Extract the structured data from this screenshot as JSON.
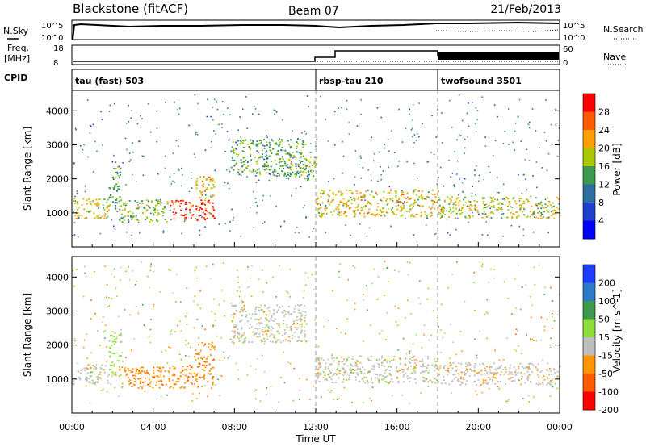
{
  "header": {
    "station": "Blackstone (fitACF)",
    "beam": "Beam 07",
    "date": "21/Feb/2013"
  },
  "top_panels": {
    "nsky_label": "N.Sky",
    "nsky_ticks": [
      "10^5",
      "10^0"
    ],
    "nsky_right_ticks": [
      "10^5",
      "10^0"
    ],
    "nsearch_label": "N.Search",
    "freq_label_1": "Freq.",
    "freq_label_2": "[MHz]",
    "freq_ticks": [
      "18",
      "8"
    ],
    "nave_ticks": [
      "60",
      "0"
    ],
    "nave_label": "Nave",
    "cpid_label": "CPID"
  },
  "cpid_segments": [
    {
      "name": "tau (fast) 503",
      "start_hour": 0
    },
    {
      "name": "rbsp-tau 210",
      "start_hour": 12
    },
    {
      "name": "twofsound 3501",
      "start_hour": 18
    }
  ],
  "chart_data": [
    {
      "type": "heatmap",
      "panel": "power",
      "ylabel": "Slant Range [km]",
      "xlim": [
        0,
        24
      ],
      "ylim": [
        0,
        4600
      ],
      "y_ticks": [
        1000,
        2000,
        3000,
        4000
      ],
      "colorbar": {
        "label": "Power [dB]",
        "ticks": [
          "28",
          "24",
          "20",
          "16",
          "12",
          "8",
          "4"
        ],
        "colors": [
          "#ff0000",
          "#ff5a00",
          "#ffa000",
          "#a8c800",
          "#3c9a4c",
          "#2c6e9e",
          "#2040d0",
          "#0000ff"
        ]
      },
      "regions": [
        {
          "x": [
            0.0,
            1.8
          ],
          "range": [
            850,
            1450
          ],
          "value": 18
        },
        {
          "x": [
            1.8,
            2.4
          ],
          "range": [
            1100,
            2400
          ],
          "value": 12
        },
        {
          "x": [
            2.3,
            4.8
          ],
          "range": [
            750,
            1400
          ],
          "value": 14
        },
        {
          "x": [
            4.8,
            7.0
          ],
          "range": [
            800,
            1400
          ],
          "value": 26
        },
        {
          "x": [
            6.0,
            7.0
          ],
          "range": [
            1400,
            2100
          ],
          "value": 20
        },
        {
          "x": [
            7.8,
            11.5
          ],
          "range": [
            2100,
            3200
          ],
          "value": 12
        },
        {
          "x": [
            10.5,
            12.0
          ],
          "range": [
            2000,
            2800
          ],
          "value": 14
        },
        {
          "x": [
            12.0,
            18.0
          ],
          "range": [
            900,
            1700
          ],
          "value": 18
        },
        {
          "x": [
            18.0,
            24.0
          ],
          "range": [
            850,
            1500
          ],
          "value": 16
        }
      ]
    },
    {
      "type": "heatmap",
      "panel": "velocity",
      "ylabel": "Slant Range [km]",
      "xlabel": "Time UT",
      "xlim": [
        0,
        24
      ],
      "ylim": [
        0,
        4600
      ],
      "x_ticks": [
        "00:00",
        "04:00",
        "08:00",
        "12:00",
        "16:00",
        "20:00",
        "00:00"
      ],
      "y_ticks": [
        1000,
        2000,
        3000,
        4000
      ],
      "colorbar": {
        "label": "Velocity [m s^-1]",
        "ticks": [
          "200",
          "100",
          "50",
          "15",
          "-15",
          "-50",
          "-100",
          "-200"
        ],
        "colors": [
          "#1e3cff",
          "#2c7ac8",
          "#3c9a4c",
          "#8cdc3c",
          "#bebebe",
          "#ff9600",
          "#ff5a00",
          "#ff0000"
        ]
      },
      "regions": [
        {
          "x": [
            0.0,
            1.8
          ],
          "range": [
            850,
            1450
          ],
          "value": 0
        },
        {
          "x": [
            1.8,
            2.4
          ],
          "range": [
            1100,
            2400
          ],
          "value": 25
        },
        {
          "x": [
            2.3,
            7.0
          ],
          "range": [
            750,
            1400
          ],
          "value": -40
        },
        {
          "x": [
            6.0,
            7.0
          ],
          "range": [
            1400,
            2100
          ],
          "value": -45
        },
        {
          "x": [
            7.8,
            11.5
          ],
          "range": [
            2100,
            3200
          ],
          "value": 0
        },
        {
          "x": [
            12.0,
            18.0
          ],
          "range": [
            900,
            1700
          ],
          "value": 0
        },
        {
          "x": [
            18.0,
            24.0
          ],
          "range": [
            850,
            1500
          ],
          "value": -5
        }
      ]
    }
  ]
}
